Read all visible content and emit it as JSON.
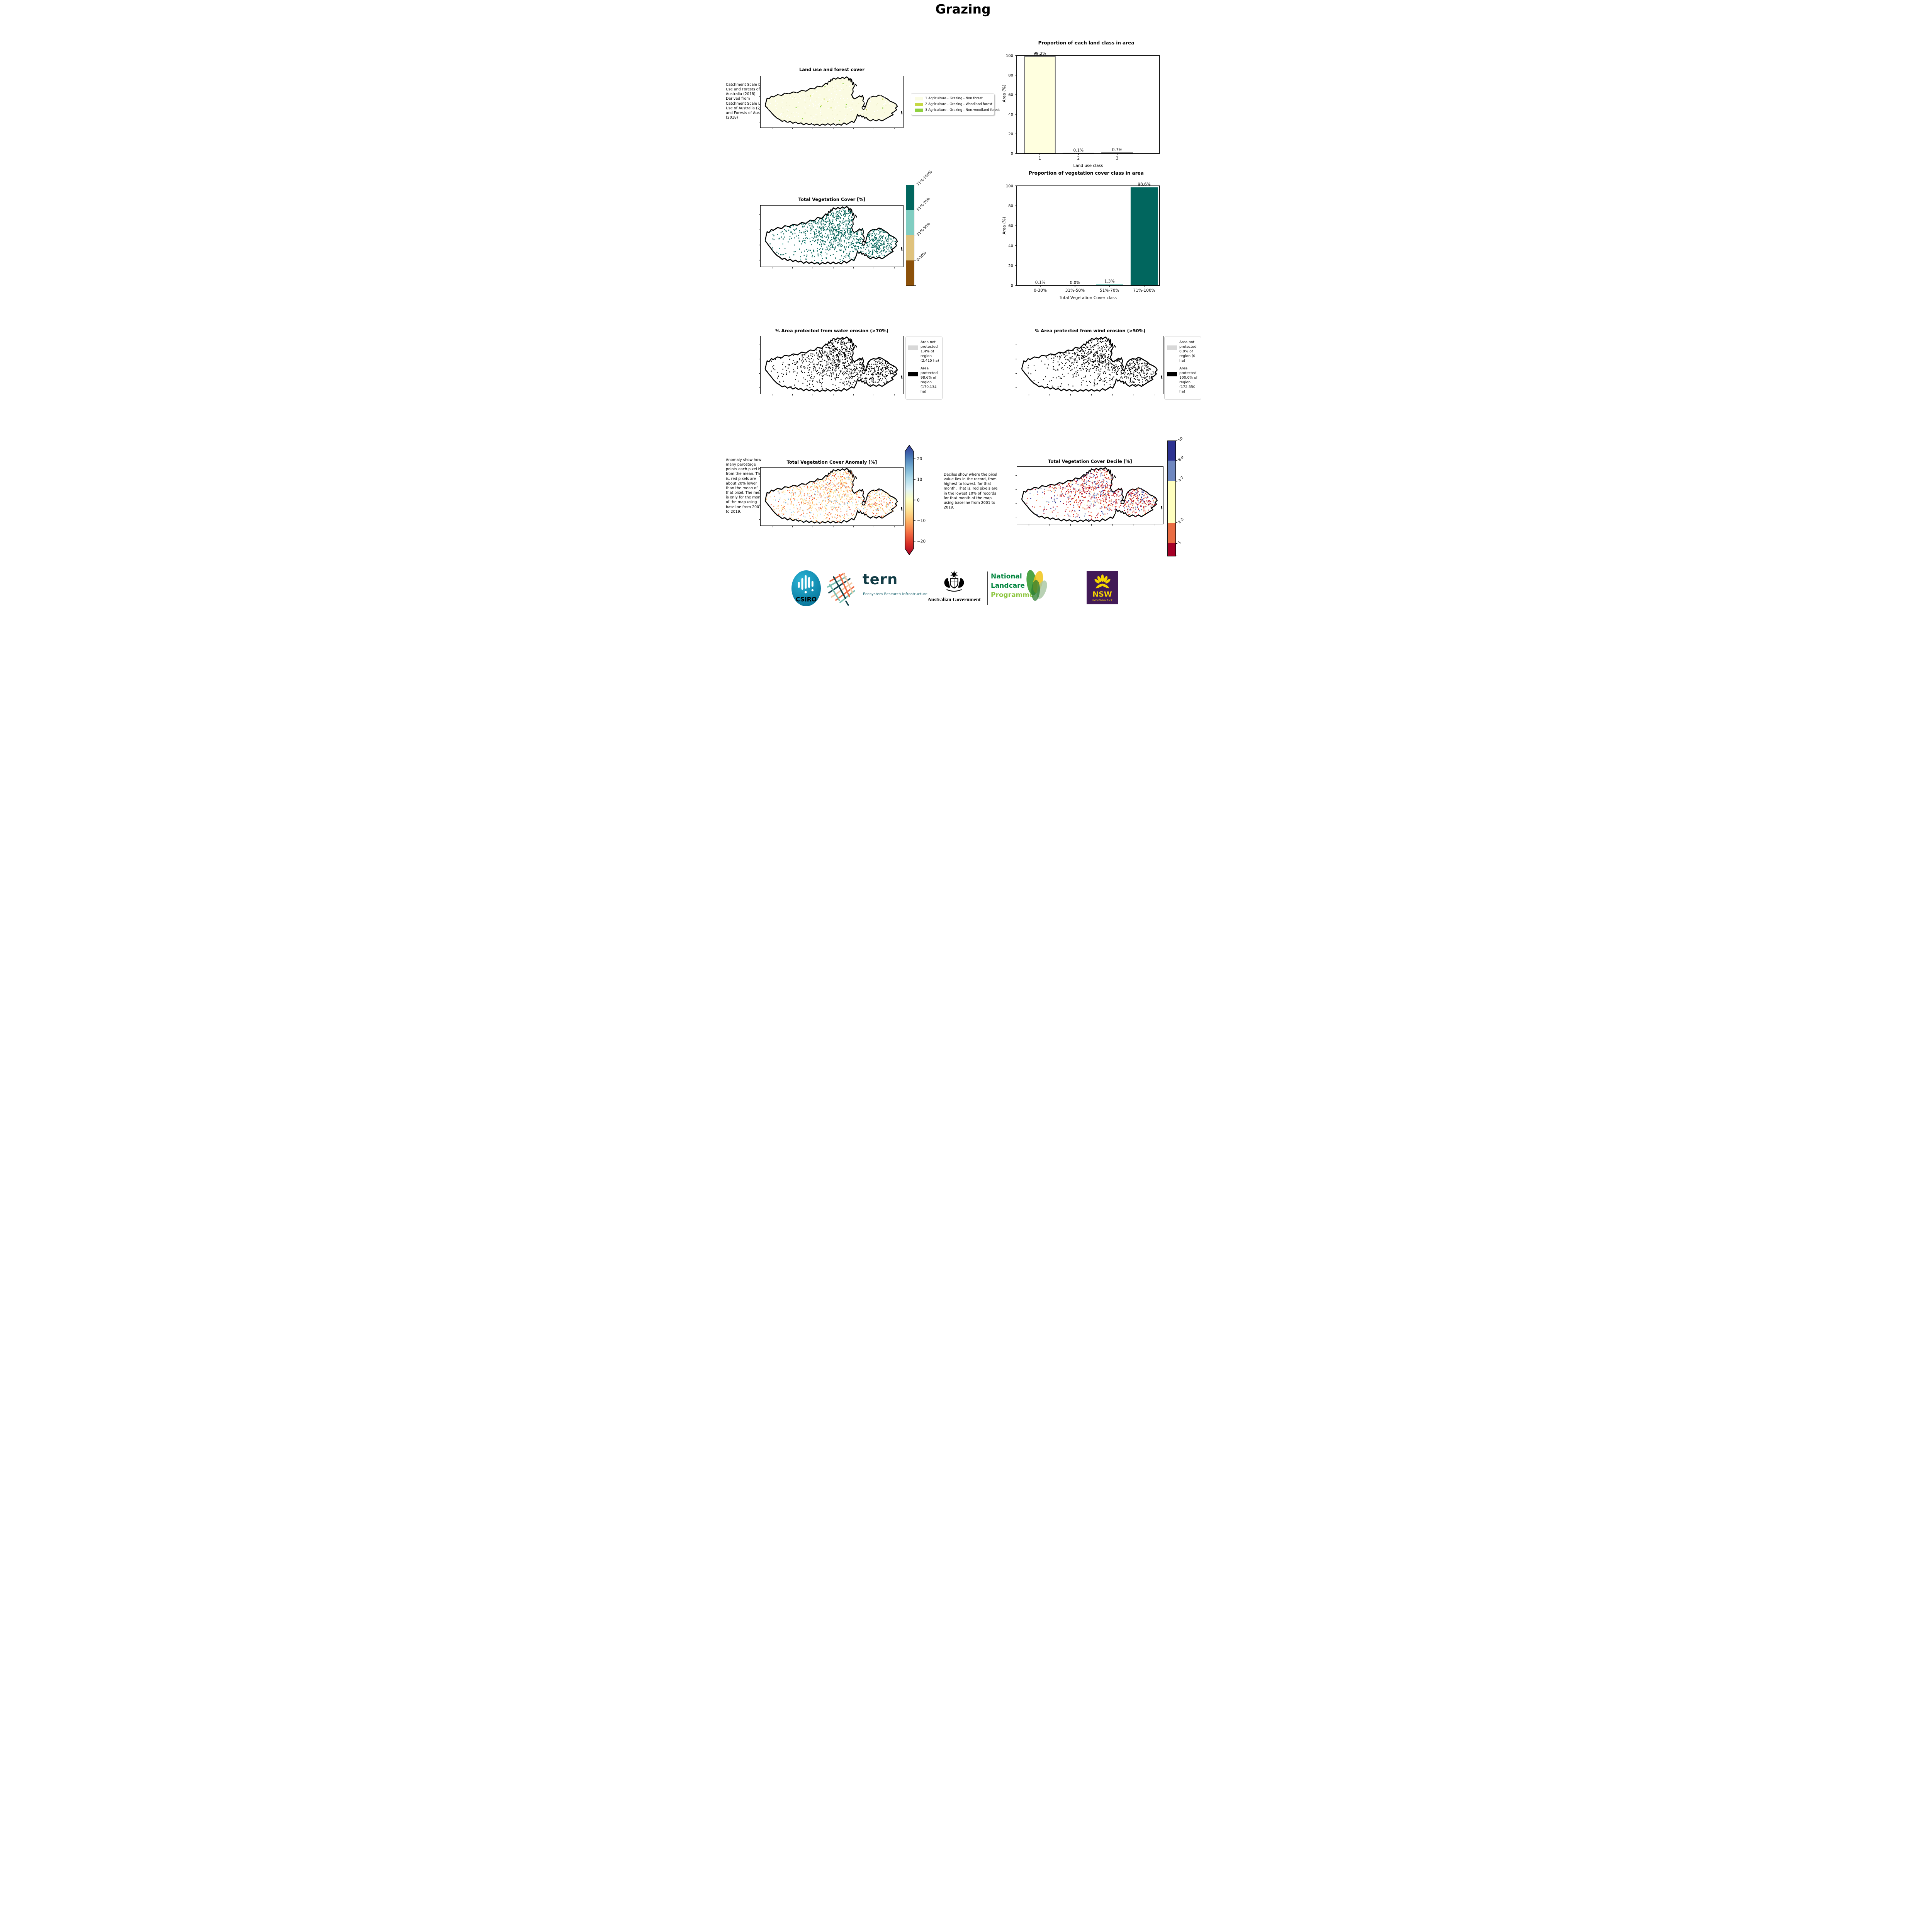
{
  "page_title": "Grazing",
  "land_use": {
    "note": "Catchment Scale Land Use and Forests of Australia (2018) Derived from Catchment Scale Land Use of Australia (2018) and Forests of Australia (2018)",
    "map_title": "Land use and forest cover",
    "legend": [
      {
        "label": "1 Agriculture - Grazing - Non forest",
        "color": "#fbfce3"
      },
      {
        "label": "2 Agriculture - Grazing - Woodland forest",
        "color": "#c6d845"
      },
      {
        "label": "3 Agriculture - Grazing - Non-woodland forest",
        "color": "#8fd13f"
      }
    ]
  },
  "chart_data": [
    {
      "type": "bar",
      "title": "Proportion of each land class in area",
      "xlabel": "Land use class",
      "ylabel": "Area (%)",
      "categories": [
        "1",
        "2",
        "3"
      ],
      "values": [
        99.2,
        0.1,
        0.7
      ],
      "value_labels": [
        "99.2%",
        "0.1%",
        "0.7%"
      ],
      "bar_colors": [
        "#ffffdf",
        "#8a8a8a",
        "#8fd13f"
      ],
      "ylim": [
        0,
        100
      ],
      "yticks": [
        0,
        20,
        40,
        60,
        80,
        100
      ],
      "legend_position": "none",
      "grid": false
    },
    {
      "type": "bar",
      "title": "Proportion of vegetation cover class in area",
      "xlabel": "Total Vegetation Cover class",
      "ylabel": "Area (%)",
      "categories": [
        "0-30%",
        "31%-50%",
        "51%-70%",
        "71%-100%"
      ],
      "values": [
        0.1,
        0.0,
        1.3,
        98.6
      ],
      "value_labels": [
        "0.1%",
        "0.0%",
        "1.3%",
        "98.6%"
      ],
      "bar_colors": [
        "#8c510a",
        "#dfc27d",
        "#80cdc1",
        "#01665e"
      ],
      "ylim": [
        0,
        100
      ],
      "yticks": [
        0,
        20,
        40,
        60,
        80,
        100
      ],
      "legend_position": "none",
      "grid": false
    }
  ],
  "veg_cover": {
    "map_title": "Total Vegetation Cover [%]",
    "colorbar": [
      {
        "label": "71%-100%",
        "color": "#01665e",
        "h": 25
      },
      {
        "label": "51%-70%",
        "color": "#80cdc1",
        "h": 25
      },
      {
        "label": "31%-50%",
        "color": "#dfc27d",
        "h": 25
      },
      {
        "label": "0-30%",
        "color": "#8c510a",
        "h": 25
      }
    ]
  },
  "water_erosion": {
    "map_title": "% Area protected from water erosion (>70%)",
    "legend": [
      {
        "swatch": "#d8d8d8",
        "text": "Area not protected 1.4% of region (2,415 ha)"
      },
      {
        "swatch": "#000000",
        "text": "Area protected 98.6% of region (170,134 ha)"
      }
    ]
  },
  "wind_erosion": {
    "map_title": "% Area protected from wind erosion (>50%)",
    "legend": [
      {
        "swatch": "#d8d8d8",
        "text": "Area not protected 0.0% of region (0 ha)"
      },
      {
        "swatch": "#000000",
        "text": "Area protected 100.0% of region (172,550 ha)"
      }
    ]
  },
  "anomaly": {
    "note": "Anomaly show how many percetage points each pixel is from the mean. That is, red pixels are about 20% lower than the mean of that pixel. The mean is only for the month of the map using baseline from 2001 to 2019.",
    "map_title": "Total Vegetation Cover Anomaly [%]",
    "colorbar": {
      "ticks": [
        "20",
        "10",
        "0",
        "−10",
        "−20"
      ],
      "range": [
        -24,
        24
      ],
      "gradient": [
        "#a50026",
        "#d73027",
        "#f46d43",
        "#fdae61",
        "#fee090",
        "#ffffbf",
        "#e0f3f8",
        "#abd9e9",
        "#74add1",
        "#4575b4",
        "#313695"
      ]
    }
  },
  "decile": {
    "note": "Deciles show where the pixel value lies in the record, from highest to lowest, for that month. That is, red pixels are in the lowest 10% of records for that month of the map using baseline from 2001 to 2019.",
    "map_title": "Total Vegetation Cover Decile [%]",
    "colorbar": [
      {
        "label": "10",
        "color": "#2c3292",
        "h": 17
      },
      {
        "label": "8-9",
        "color": "#6f87c0",
        "h": 18
      },
      {
        "label": "4-7",
        "color": "#ffffbf",
        "h": 36
      },
      {
        "label": "2-3",
        "color": "#ea6c42",
        "h": 18
      },
      {
        "label": "1",
        "color": "#a50026",
        "h": 11
      }
    ]
  },
  "footer": {
    "csiro": {
      "label": "CSIRO"
    },
    "tern": {
      "name": "tern",
      "tagline": "Ecosystem Research Infrastructure"
    },
    "aus_gov": {
      "label": "Australian Government"
    },
    "landcare": {
      "line1": "National",
      "line2": "Landcare",
      "line3": "Programme"
    },
    "nsw": {
      "name": "NSW",
      "sub": "GOVERNMENT"
    }
  }
}
